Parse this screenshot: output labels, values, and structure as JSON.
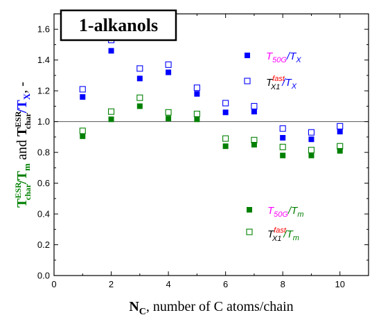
{
  "chart_data": {
    "type": "scatter",
    "title": "1-alkanols",
    "xlabel": {
      "main": "N",
      "sub": "C",
      "rest": ", number of C atoms/chain"
    },
    "ylabel": {
      "part1_main": "T",
      "part1_sup": "ESR",
      "part1_sub": "char",
      "part1_slash": "/",
      "part1_denom": "T",
      "part1_denom_sub": "m",
      "and": " and ",
      "part2_main": "T",
      "part2_sup": "ESR",
      "part2_sub": "char",
      "part2_slash": "/",
      "part2_denom": "T",
      "part2_denom_sub": "X",
      "suffix": ", -"
    },
    "xlim": [
      0,
      11
    ],
    "ylim": [
      0.0,
      1.7
    ],
    "x_ticks": [
      0,
      2,
      4,
      6,
      8,
      10
    ],
    "y_ticks": [
      "0.0",
      "0.2",
      "0.4",
      "0.6",
      "0.8",
      "1.0",
      "1.2",
      "1.4",
      "1.6"
    ],
    "reference_line_y": 1.0,
    "grid": false,
    "series": [
      {
        "legend_main": "T",
        "legend_sub": "50G",
        "legend_slash": "/",
        "legend_denom": "T",
        "legend_denom_sub": "X",
        "color": "#0000ff",
        "label_color": "#ff00ff",
        "marker": "filled-square",
        "x": [
          1,
          2,
          3,
          4,
          5,
          6,
          7,
          8,
          9,
          10
        ],
        "y": [
          1.16,
          1.46,
          1.28,
          1.32,
          1.18,
          1.06,
          1.065,
          0.895,
          0.885,
          0.935
        ]
      },
      {
        "legend_main": "T",
        "legend_sup": "fast",
        "legend_sub": "X1",
        "legend_slash": "/",
        "legend_denom": "T",
        "legend_denom_sub": "X",
        "color": "#0000ff",
        "label_color": "#000000",
        "sup_color": "#ff0000",
        "marker": "open-square",
        "x": [
          1,
          2,
          3,
          4,
          5,
          6,
          7,
          8,
          9,
          10
        ],
        "y": [
          1.21,
          1.53,
          1.345,
          1.37,
          1.22,
          1.12,
          1.1,
          0.955,
          0.93,
          0.97
        ]
      },
      {
        "legend_main": "T",
        "legend_sub": "50G",
        "legend_slash": "/",
        "legend_denom": "T",
        "legend_denom_sub": "m",
        "color": "#008000",
        "label_color": "#ff00ff",
        "marker": "filled-square",
        "x": [
          1,
          2,
          3,
          4,
          5,
          6,
          7,
          8,
          9,
          10
        ],
        "y": [
          0.905,
          1.015,
          1.1,
          1.02,
          1.015,
          0.84,
          0.85,
          0.78,
          0.78,
          0.81
        ]
      },
      {
        "legend_main": "T",
        "legend_sup": "fast",
        "legend_sub": "X1",
        "legend_slash": "/",
        "legend_denom": "T",
        "legend_denom_sub": "m",
        "color": "#008000",
        "label_color": "#000000",
        "sup_color": "#ff0000",
        "marker": "open-square",
        "x": [
          1,
          2,
          3,
          4,
          5,
          6,
          7,
          8,
          9,
          10
        ],
        "y": [
          0.94,
          1.065,
          1.155,
          1.06,
          1.05,
          0.89,
          0.88,
          0.835,
          0.815,
          0.84
        ]
      }
    ]
  }
}
